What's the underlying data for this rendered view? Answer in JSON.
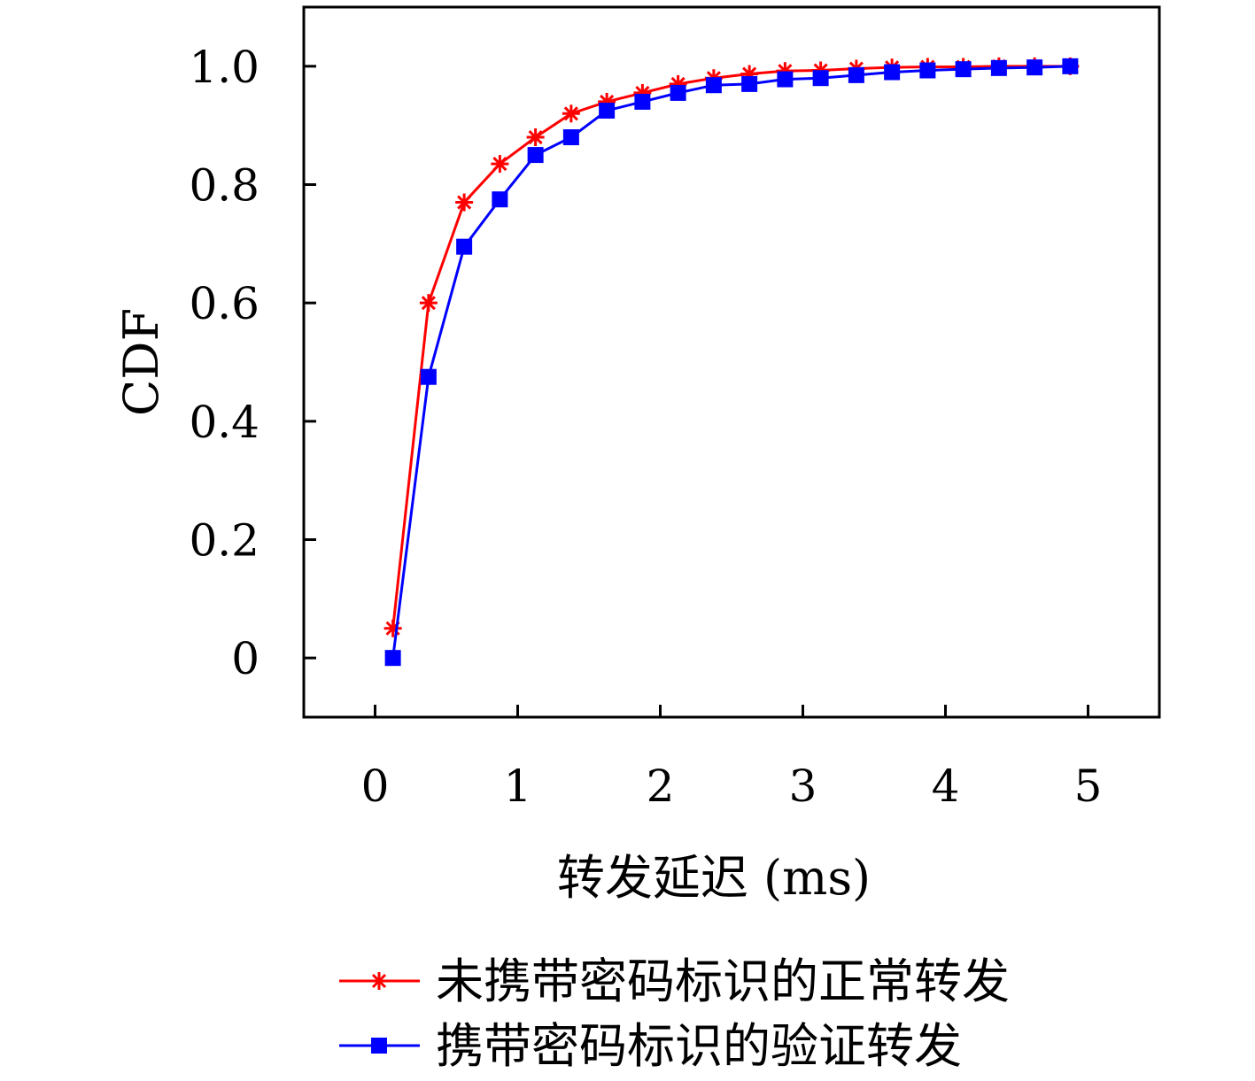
{
  "chart_data": {
    "type": "line",
    "title": "",
    "xlabel": "转发延迟 (ms)",
    "ylabel": "CDF",
    "xlim": [
      -0.5,
      5.5
    ],
    "ylim": [
      -0.1,
      1.1
    ],
    "xticks": [
      0,
      1,
      2,
      3,
      4,
      5
    ],
    "yticks": [
      0,
      0.2,
      0.4,
      0.6,
      0.8,
      1.0
    ],
    "ytick_labels": [
      "0",
      "0.2",
      "0.4",
      "0.6",
      "0.8",
      "1.0"
    ],
    "grid": false,
    "legend_position": "bottom",
    "series": [
      {
        "name": "未携带密码标识的正常转发",
        "color": "#ff0000",
        "marker": "asterisk",
        "x": [
          0.125,
          0.375,
          0.625,
          0.875,
          1.125,
          1.375,
          1.625,
          1.875,
          2.125,
          2.375,
          2.625,
          2.875,
          3.125,
          3.375,
          3.625,
          3.875,
          4.125,
          4.375,
          4.625,
          4.875
        ],
        "y": [
          0.05,
          0.6,
          0.77,
          0.835,
          0.88,
          0.92,
          0.94,
          0.955,
          0.97,
          0.98,
          0.987,
          0.992,
          0.993,
          0.996,
          0.998,
          0.999,
          0.999,
          1.0,
          1.0,
          1.0
        ]
      },
      {
        "name": "携带密码标识的验证转发",
        "color": "#0000ff",
        "marker": "square",
        "x": [
          0.125,
          0.375,
          0.625,
          0.875,
          1.125,
          1.375,
          1.625,
          1.875,
          2.125,
          2.375,
          2.625,
          2.875,
          3.125,
          3.375,
          3.625,
          3.875,
          4.125,
          4.375,
          4.625,
          4.875
        ],
        "y": [
          0.0,
          0.475,
          0.695,
          0.775,
          0.85,
          0.88,
          0.925,
          0.94,
          0.955,
          0.968,
          0.97,
          0.978,
          0.98,
          0.985,
          0.99,
          0.993,
          0.995,
          0.997,
          0.998,
          1.0
        ]
      }
    ]
  }
}
